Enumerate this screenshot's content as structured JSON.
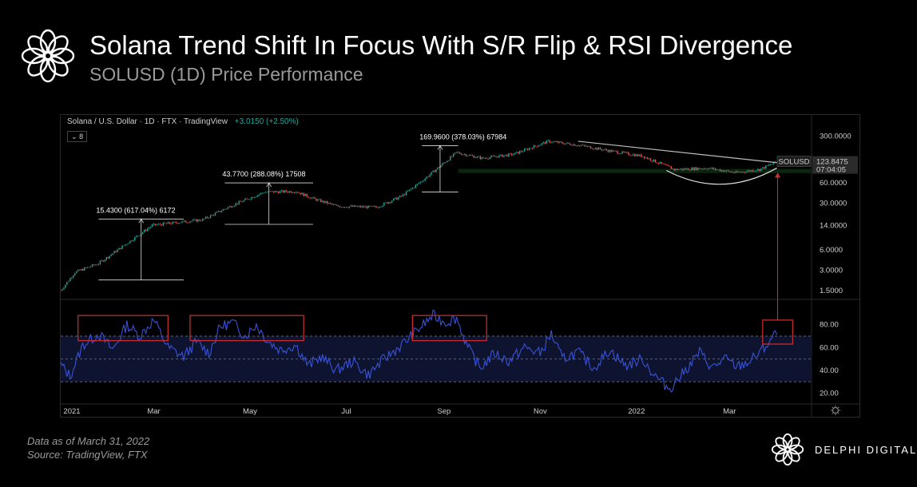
{
  "title": "Solana Trend Shift In Focus With S/R Flip & RSI Divergence",
  "subtitle": "SOLUSD (1D) Price Performance",
  "chart_header": {
    "symbol": "Solana / U.S. Dollar · 1D · FTX · TradingView",
    "change": "+3.0150 (+2.50%)",
    "indicator_badge": "8"
  },
  "colors": {
    "candle_up": "#26a69a",
    "candle_down": "#ef5350",
    "rsi_line": "#3a52d6",
    "rsi_band": "#0e1430",
    "highlight_box": "#d32f2f",
    "support_zone": "#0c2410",
    "trendline": "#bdbdbd",
    "arrow": "#d32f2f"
  },
  "chart_data": [
    {
      "type": "candlestick",
      "title": "SOLUSD (1D)",
      "y_scale": "log",
      "ylim": [
        1.2,
        420
      ],
      "y_ticks": [
        {
          "value": 300,
          "label": "300.0000"
        },
        {
          "value": 60,
          "label": "60.0000"
        },
        {
          "value": 30,
          "label": "30.0000"
        },
        {
          "value": 14,
          "label": "14.0000"
        },
        {
          "value": 6,
          "label": "6.0000"
        },
        {
          "value": 3,
          "label": "3.0000"
        },
        {
          "value": 1.5,
          "label": "1.5000"
        }
      ],
      "x_ticks": [
        {
          "date": "2021-01-01",
          "label": "2021"
        },
        {
          "date": "2021-03-01",
          "label": "Mar"
        },
        {
          "date": "2021-05-01",
          "label": "May"
        },
        {
          "date": "2021-07-01",
          "label": "Jul"
        },
        {
          "date": "2021-09-01",
          "label": "Sep"
        },
        {
          "date": "2021-11-01",
          "label": "Nov"
        },
        {
          "date": "2022-01-01",
          "label": "2022"
        },
        {
          "date": "2022-03-01",
          "label": "Mar"
        }
      ],
      "price_path": [
        {
          "date": "2021-01-01",
          "close": 1.5
        },
        {
          "date": "2021-01-10",
          "close": 2.8
        },
        {
          "date": "2021-01-25",
          "close": 3.8
        },
        {
          "date": "2021-02-10",
          "close": 7
        },
        {
          "date": "2021-02-28",
          "close": 14
        },
        {
          "date": "2021-03-15",
          "close": 15.4
        },
        {
          "date": "2021-04-01",
          "close": 17
        },
        {
          "date": "2021-04-20",
          "close": 28
        },
        {
          "date": "2021-05-10",
          "close": 43.77
        },
        {
          "date": "2021-05-30",
          "close": 45
        },
        {
          "date": "2021-06-10",
          "close": 35
        },
        {
          "date": "2021-06-25",
          "close": 27
        },
        {
          "date": "2021-07-20",
          "close": 26
        },
        {
          "date": "2021-08-05",
          "close": 38
        },
        {
          "date": "2021-08-20",
          "close": 70
        },
        {
          "date": "2021-09-09",
          "close": 169.96
        },
        {
          "date": "2021-09-25",
          "close": 140
        },
        {
          "date": "2021-10-15",
          "close": 160
        },
        {
          "date": "2021-11-06",
          "close": 250
        },
        {
          "date": "2021-11-25",
          "close": 220
        },
        {
          "date": "2021-12-15",
          "close": 180
        },
        {
          "date": "2022-01-05",
          "close": 150
        },
        {
          "date": "2022-01-25",
          "close": 95
        },
        {
          "date": "2022-02-15",
          "close": 100
        },
        {
          "date": "2022-03-05",
          "close": 85
        },
        {
          "date": "2022-03-20",
          "close": 95
        },
        {
          "date": "2022-03-31",
          "close": 123.8475
        }
      ],
      "annotations": [
        {
          "label": "15.4300 (617.04%) 6172",
          "from_date": "2021-01-25",
          "to_date": "2021-03-20",
          "low": 2.15,
          "high": 17.4
        },
        {
          "label": "43.7700 (288.08%) 17508",
          "from_date": "2021-04-15",
          "to_date": "2021-06-10",
          "low": 14.5,
          "high": 60
        },
        {
          "label": "169.9600 (378.03%) 67984",
          "from_date": "2021-08-18",
          "to_date": "2021-09-10",
          "low": 44,
          "high": 215
        }
      ],
      "support_zone": {
        "low": 84,
        "high": 97
      },
      "trendline": [
        {
          "date": "2021-11-25",
          "price": 250
        },
        {
          "date": "2022-03-31",
          "price": 120
        }
      ],
      "last_price": {
        "symbol": "SOLUSD",
        "value": "123.8475",
        "countdown": "07:04:05"
      }
    },
    {
      "type": "line",
      "title": "RSI",
      "ylim": [
        12,
        100
      ],
      "y_ticks": [
        80,
        60,
        40,
        20
      ],
      "band": [
        30,
        70
      ],
      "mid": 50,
      "rsi_points": [
        {
          "date": "2021-01-01",
          "value": 45
        },
        {
          "date": "2021-01-07",
          "value": 35
        },
        {
          "date": "2021-01-15",
          "value": 62
        },
        {
          "date": "2021-01-25",
          "value": 72
        },
        {
          "date": "2021-02-03",
          "value": 58
        },
        {
          "date": "2021-02-12",
          "value": 80
        },
        {
          "date": "2021-02-20",
          "value": 70
        },
        {
          "date": "2021-03-01",
          "value": 84
        },
        {
          "date": "2021-03-10",
          "value": 60
        },
        {
          "date": "2021-03-20",
          "value": 52
        },
        {
          "date": "2021-03-28",
          "value": 65
        },
        {
          "date": "2021-04-05",
          "value": 55
        },
        {
          "date": "2021-04-12",
          "value": 78
        },
        {
          "date": "2021-04-20",
          "value": 82
        },
        {
          "date": "2021-04-28",
          "value": 70
        },
        {
          "date": "2021-05-05",
          "value": 80
        },
        {
          "date": "2021-05-12",
          "value": 66
        },
        {
          "date": "2021-05-20",
          "value": 58
        },
        {
          "date": "2021-05-30",
          "value": 62
        },
        {
          "date": "2021-06-07",
          "value": 44
        },
        {
          "date": "2021-06-15",
          "value": 52
        },
        {
          "date": "2021-06-25",
          "value": 40
        },
        {
          "date": "2021-07-05",
          "value": 48
        },
        {
          "date": "2021-07-15",
          "value": 36
        },
        {
          "date": "2021-07-25",
          "value": 50
        },
        {
          "date": "2021-08-05",
          "value": 62
        },
        {
          "date": "2021-08-15",
          "value": 75
        },
        {
          "date": "2021-08-25",
          "value": 88
        },
        {
          "date": "2021-09-02",
          "value": 82
        },
        {
          "date": "2021-09-09",
          "value": 86
        },
        {
          "date": "2021-09-16",
          "value": 60
        },
        {
          "date": "2021-09-24",
          "value": 42
        },
        {
          "date": "2021-10-03",
          "value": 55
        },
        {
          "date": "2021-10-12",
          "value": 48
        },
        {
          "date": "2021-10-22",
          "value": 60
        },
        {
          "date": "2021-11-01",
          "value": 55
        },
        {
          "date": "2021-11-08",
          "value": 72
        },
        {
          "date": "2021-11-15",
          "value": 50
        },
        {
          "date": "2021-11-25",
          "value": 56
        },
        {
          "date": "2021-12-05",
          "value": 42
        },
        {
          "date": "2021-12-15",
          "value": 58
        },
        {
          "date": "2021-12-25",
          "value": 44
        },
        {
          "date": "2022-01-05",
          "value": 50
        },
        {
          "date": "2022-01-12",
          "value": 36
        },
        {
          "date": "2022-01-22",
          "value": 24
        },
        {
          "date": "2022-02-01",
          "value": 40
        },
        {
          "date": "2022-02-10",
          "value": 56
        },
        {
          "date": "2022-02-18",
          "value": 42
        },
        {
          "date": "2022-02-26",
          "value": 50
        },
        {
          "date": "2022-03-06",
          "value": 43
        },
        {
          "date": "2022-03-14",
          "value": 48
        },
        {
          "date": "2022-03-22",
          "value": 58
        },
        {
          "date": "2022-03-31",
          "value": 73
        }
      ],
      "highlight_boxes": [
        {
          "from_date": "2021-01-12",
          "to_date": "2021-03-10",
          "low": 66,
          "high": 88
        },
        {
          "from_date": "2021-03-24",
          "to_date": "2021-06-04",
          "low": 66,
          "high": 88
        },
        {
          "from_date": "2021-08-12",
          "to_date": "2021-09-28",
          "low": 66,
          "high": 88
        },
        {
          "from_date": "2022-03-22",
          "to_date": "2022-04-10",
          "low": 63,
          "high": 84
        }
      ]
    }
  ],
  "footer": {
    "date_note": "Data as of March  31, 2022",
    "source": "Source: TradingView, FTX"
  },
  "brand": {
    "name": "DELPHI DIGITAL"
  }
}
